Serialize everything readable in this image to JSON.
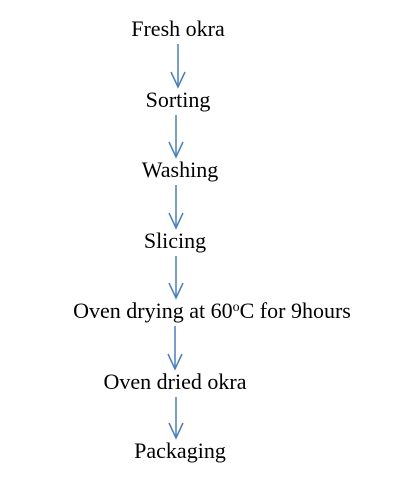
{
  "nodes": [
    {
      "label": "Fresh okra"
    },
    {
      "label": "Sorting"
    },
    {
      "label": "Washing"
    },
    {
      "label": "Slicing"
    },
    {
      "label": [
        "Oven drying at 60",
        "o",
        "C for 9hours"
      ]
    },
    {
      "label": "Oven dried okra"
    },
    {
      "label": "Packaging"
    }
  ]
}
